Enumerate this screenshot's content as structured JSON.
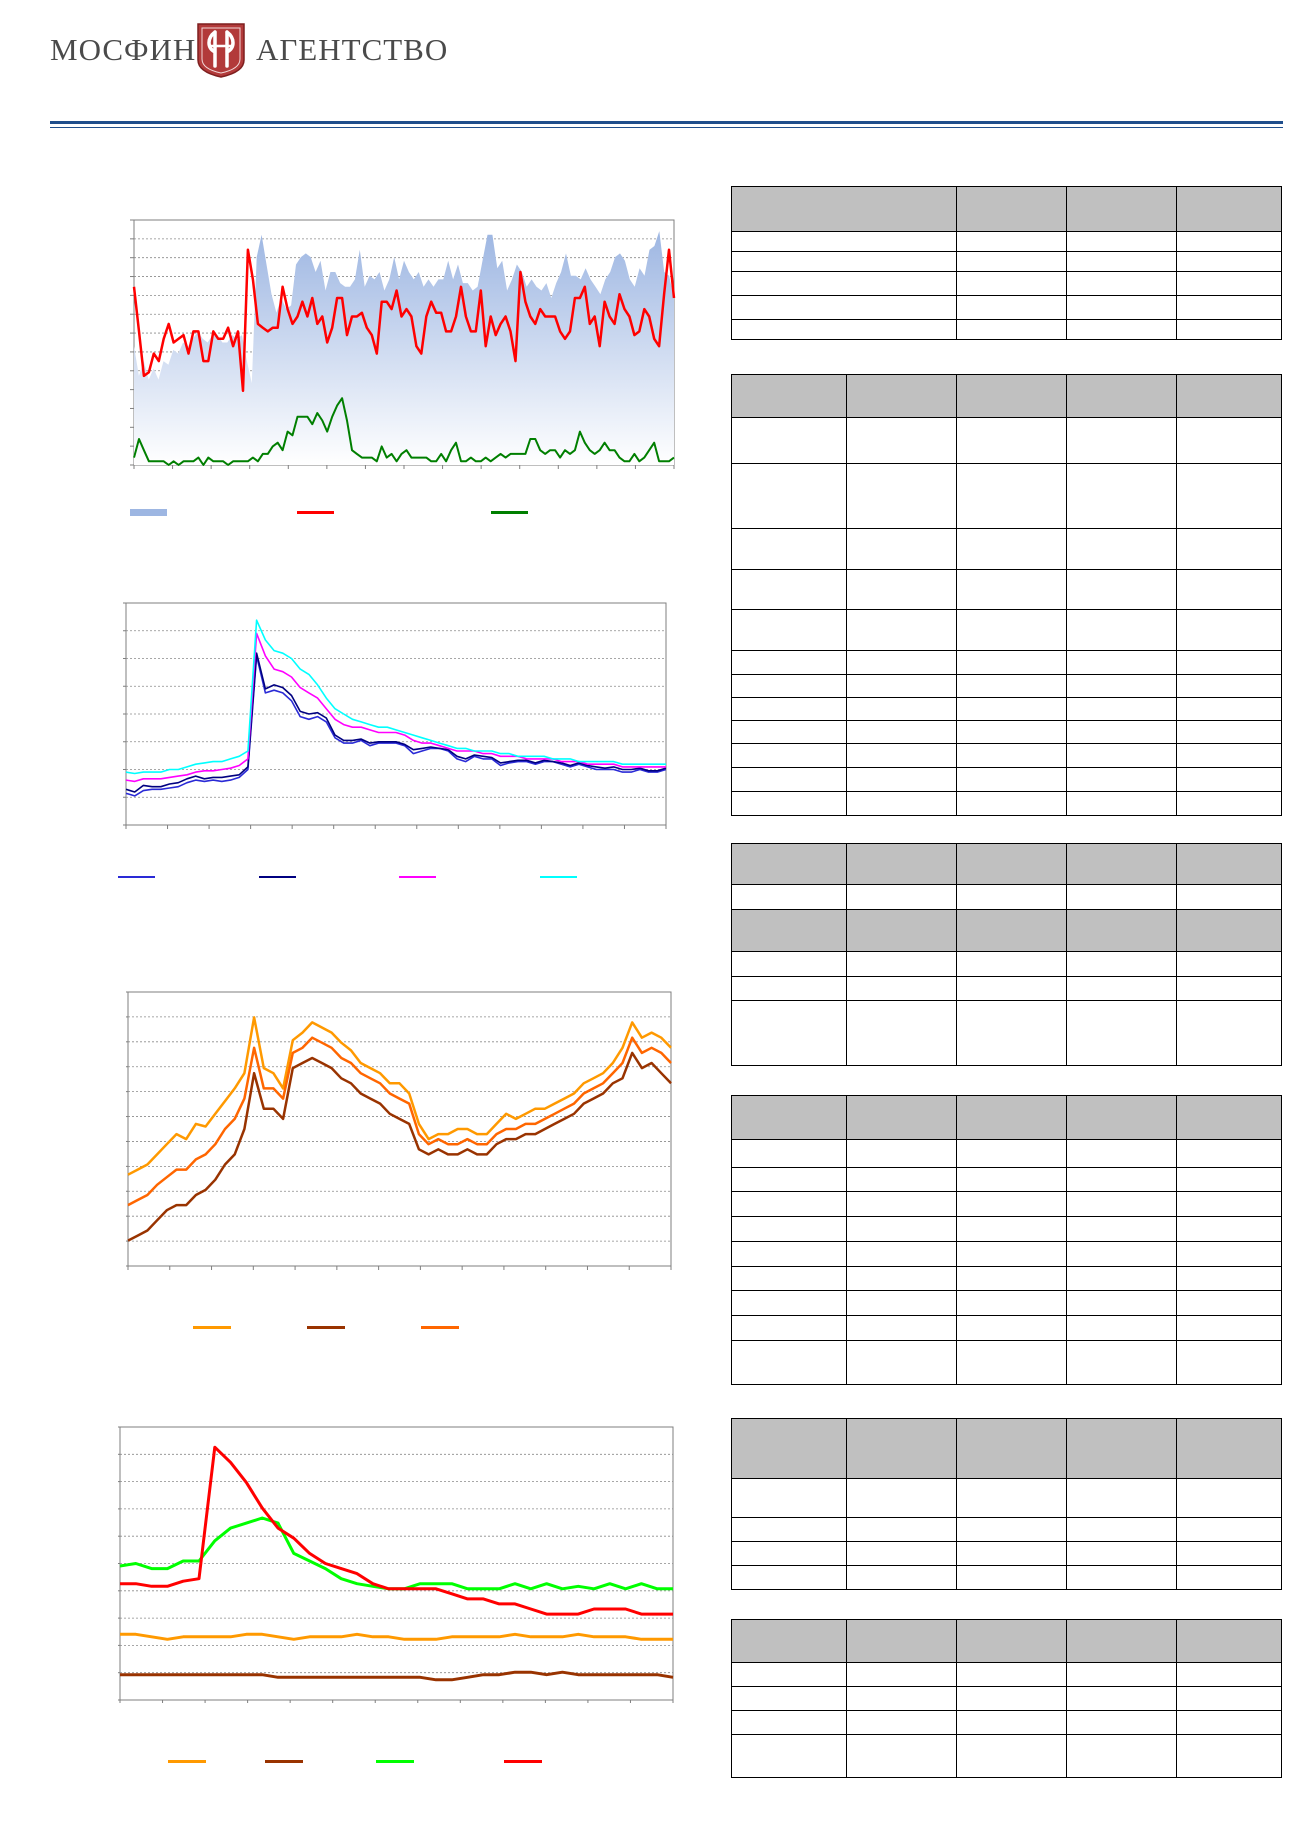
{
  "header": {
    "logo_left": "МОСФИН",
    "logo_right": "АГЕНТСТВО"
  },
  "colors": {
    "rule": "#1f4e8c",
    "table_header": "#c0c0c0"
  },
  "chart_data": [
    {
      "type": "area",
      "id": "chart1",
      "series": [
        {
          "values": [
            32,
            24,
            28,
            23,
            26,
            23,
            28,
            27,
            31,
            30,
            33,
            32,
            34,
            36,
            34,
            33,
            35,
            35,
            33,
            33,
            35,
            34,
            35,
            28,
            22,
            56,
            62,
            54,
            46,
            41,
            45,
            42,
            43,
            54,
            56,
            57,
            56,
            52,
            55,
            47,
            52,
            52,
            49,
            48,
            48,
            50,
            58,
            48,
            51,
            50,
            52,
            47,
            50,
            56,
            50,
            55,
            52,
            50,
            52,
            48,
            50,
            48,
            50,
            50,
            55,
            50,
            54,
            49,
            49,
            47,
            48,
            55,
            62,
            62,
            53,
            55,
            47,
            50,
            54,
            52,
            48,
            50,
            48,
            47,
            49,
            45,
            49,
            52,
            57,
            51,
            51,
            50,
            53,
            50,
            48,
            46,
            50,
            52,
            56,
            57,
            55,
            50,
            48,
            53,
            51,
            58,
            59,
            63,
            52,
            51,
            45
          ]
        },
        {
          "values": [
            48,
            36,
            24,
            25,
            30,
            28,
            34,
            38,
            33,
            34,
            35,
            30,
            36,
            36,
            28,
            28,
            36,
            34,
            34,
            37,
            32,
            36,
            20,
            58,
            50,
            38,
            37,
            36,
            37,
            37,
            48,
            42,
            38,
            40,
            44,
            40,
            45,
            38,
            40,
            33,
            37,
            45,
            45,
            35,
            40,
            40,
            41,
            37,
            35,
            30,
            44,
            44,
            42,
            47,
            40,
            42,
            40,
            32,
            30,
            40,
            44,
            41,
            41,
            36,
            36,
            40,
            48,
            40,
            36,
            36,
            47,
            32,
            40,
            35,
            38,
            40,
            36,
            28,
            52,
            44,
            40,
            38,
            42,
            40,
            40,
            40,
            36,
            34,
            36,
            45,
            45,
            48,
            38,
            40,
            32,
            44,
            40,
            38,
            46,
            42,
            40,
            35,
            36,
            42,
            40,
            34,
            32,
            46,
            58,
            45
          ]
        },
        {
          "values": [
            2,
            7,
            4,
            1,
            1,
            1,
            1,
            0,
            1,
            0,
            1,
            1,
            1,
            2,
            0,
            2,
            1,
            1,
            1,
            0,
            1,
            1,
            1,
            1,
            2,
            1,
            3,
            3,
            5,
            6,
            4,
            9,
            8,
            13,
            13,
            13,
            11,
            14,
            12,
            9,
            13,
            16,
            18,
            12,
            4,
            3,
            2,
            2,
            2,
            1,
            5,
            2,
            3,
            1,
            3,
            4,
            2,
            2,
            2,
            2,
            1,
            1,
            3,
            1,
            4,
            6,
            1,
            1,
            2,
            1,
            1,
            2,
            1,
            2,
            3,
            2,
            3,
            3,
            3,
            3,
            7,
            7,
            4,
            3,
            4,
            4,
            2,
            4,
            3,
            4,
            9,
            6,
            4,
            3,
            4,
            6,
            4,
            4,
            2,
            1,
            1,
            3,
            1,
            2,
            4,
            6,
            1,
            1,
            1,
            2
          ]
        }
      ]
    },
    {
      "type": "line",
      "id": "chart2",
      "series": [
        {
          "values": [
            24,
            22,
            26,
            27,
            27,
            28,
            29,
            32,
            34,
            33,
            34,
            33,
            34,
            36,
            42,
            128,
            100,
            102,
            100,
            94,
            82,
            80,
            82,
            78,
            66,
            62,
            62,
            64,
            60,
            62,
            62,
            62,
            60,
            54,
            56,
            58,
            58,
            56,
            50,
            48,
            52,
            50,
            50,
            45,
            47,
            48,
            48,
            46,
            48,
            48,
            46,
            44,
            46,
            44,
            42,
            42,
            42,
            40,
            40,
            42,
            40,
            40,
            42
          ]
        },
        {
          "values": [
            27,
            25,
            30,
            29,
            29,
            31,
            32,
            35,
            37,
            35,
            36,
            36,
            37,
            38,
            44,
            130,
            103,
            106,
            104,
            98,
            86,
            84,
            85,
            81,
            68,
            64,
            64,
            65,
            62,
            63,
            63,
            63,
            61,
            57,
            58,
            59,
            58,
            57,
            52,
            50,
            53,
            52,
            51,
            47,
            48,
            49,
            49,
            47,
            49,
            48,
            47,
            45,
            47,
            45,
            44,
            43,
            44,
            42,
            42,
            43,
            41,
            41,
            43
          ]
        },
        {
          "values": [
            34,
            33,
            35,
            35,
            35,
            36,
            37,
            38,
            40,
            41,
            41,
            42,
            43,
            45,
            50,
            145,
            128,
            118,
            116,
            112,
            104,
            100,
            96,
            88,
            80,
            76,
            74,
            74,
            72,
            70,
            70,
            70,
            68,
            64,
            62,
            62,
            60,
            58,
            56,
            56,
            56,
            54,
            54,
            52,
            52,
            52,
            50,
            50,
            50,
            50,
            48,
            48,
            48,
            46,
            46,
            46,
            46,
            44,
            44,
            44,
            44,
            44,
            44
          ]
        },
        {
          "values": [
            40,
            39,
            40,
            40,
            40,
            42,
            42,
            44,
            46,
            47,
            48,
            48,
            50,
            52,
            56,
            155,
            140,
            132,
            130,
            126,
            118,
            114,
            106,
            96,
            88,
            84,
            80,
            78,
            76,
            74,
            74,
            72,
            70,
            68,
            66,
            64,
            62,
            60,
            58,
            58,
            56,
            56,
            56,
            54,
            54,
            52,
            52,
            52,
            52,
            50,
            50,
            50,
            48,
            48,
            48,
            48,
            48,
            46,
            46,
            46,
            46,
            46,
            46
          ]
        }
      ]
    },
    {
      "type": "line",
      "id": "chart3",
      "series": [
        {
          "values": [
            36,
            38,
            40,
            44,
            48,
            52,
            50,
            56,
            55,
            60,
            65,
            70,
            76,
            98,
            78,
            76,
            70,
            89,
            92,
            96,
            94,
            92,
            88,
            85,
            80,
            78,
            76,
            72,
            72,
            68,
            56,
            50,
            52,
            52,
            54,
            54,
            52,
            52,
            56,
            60,
            58,
            60,
            62,
            62,
            64,
            66,
            68,
            72,
            74,
            76,
            80,
            86,
            96,
            90,
            92,
            90,
            86
          ]
        },
        {
          "values": [
            24,
            26,
            28,
            32,
            35,
            38,
            38,
            42,
            44,
            48,
            54,
            58,
            66,
            86,
            70,
            70,
            66,
            84,
            86,
            90,
            88,
            86,
            82,
            80,
            76,
            74,
            72,
            68,
            66,
            64,
            52,
            48,
            50,
            48,
            48,
            50,
            48,
            48,
            52,
            54,
            54,
            56,
            56,
            58,
            60,
            62,
            64,
            68,
            70,
            72,
            76,
            80,
            90,
            84,
            86,
            84,
            80
          ]
        },
        {
          "values": [
            10,
            12,
            14,
            18,
            22,
            24,
            24,
            28,
            30,
            34,
            40,
            44,
            54,
            76,
            62,
            62,
            58,
            78,
            80,
            82,
            80,
            78,
            74,
            72,
            68,
            66,
            64,
            60,
            58,
            56,
            46,
            44,
            46,
            44,
            44,
            46,
            44,
            44,
            48,
            50,
            50,
            52,
            52,
            54,
            56,
            58,
            60,
            64,
            66,
            68,
            72,
            74,
            84,
            78,
            80,
            76,
            72
          ]
        }
      ]
    },
    {
      "type": "line",
      "id": "chart4",
      "series": [
        {
          "values": [
            26,
            26,
            25,
            24,
            25,
            25,
            25,
            25,
            26,
            26,
            25,
            24,
            25,
            25,
            25,
            26,
            25,
            25,
            24,
            24,
            24,
            25,
            25,
            25,
            25,
            26,
            25,
            25,
            25,
            26,
            25,
            25,
            25,
            24,
            24,
            24
          ]
        },
        {
          "values": [
            10,
            10,
            10,
            10,
            10,
            10,
            10,
            10,
            10,
            10,
            9,
            9,
            9,
            9,
            9,
            9,
            9,
            9,
            9,
            9,
            8,
            8,
            9,
            10,
            10,
            11,
            11,
            10,
            11,
            10,
            10,
            10,
            10,
            10,
            10,
            9
          ]
        },
        {
          "values": [
            53,
            54,
            52,
            52,
            55,
            55,
            63,
            68,
            70,
            72,
            70,
            58,
            55,
            52,
            48,
            46,
            45,
            44,
            44,
            46,
            46,
            46,
            44,
            44,
            44,
            46,
            44,
            46,
            44,
            45,
            44,
            46,
            44,
            46,
            44,
            44
          ]
        },
        {
          "values": [
            46,
            46,
            45,
            45,
            47,
            48,
            100,
            94,
            86,
            76,
            68,
            64,
            58,
            54,
            52,
            50,
            46,
            44,
            44,
            44,
            44,
            42,
            40,
            40,
            38,
            38,
            36,
            34,
            34,
            34,
            36,
            36,
            36,
            34,
            34,
            34
          ]
        }
      ]
    }
  ]
}
